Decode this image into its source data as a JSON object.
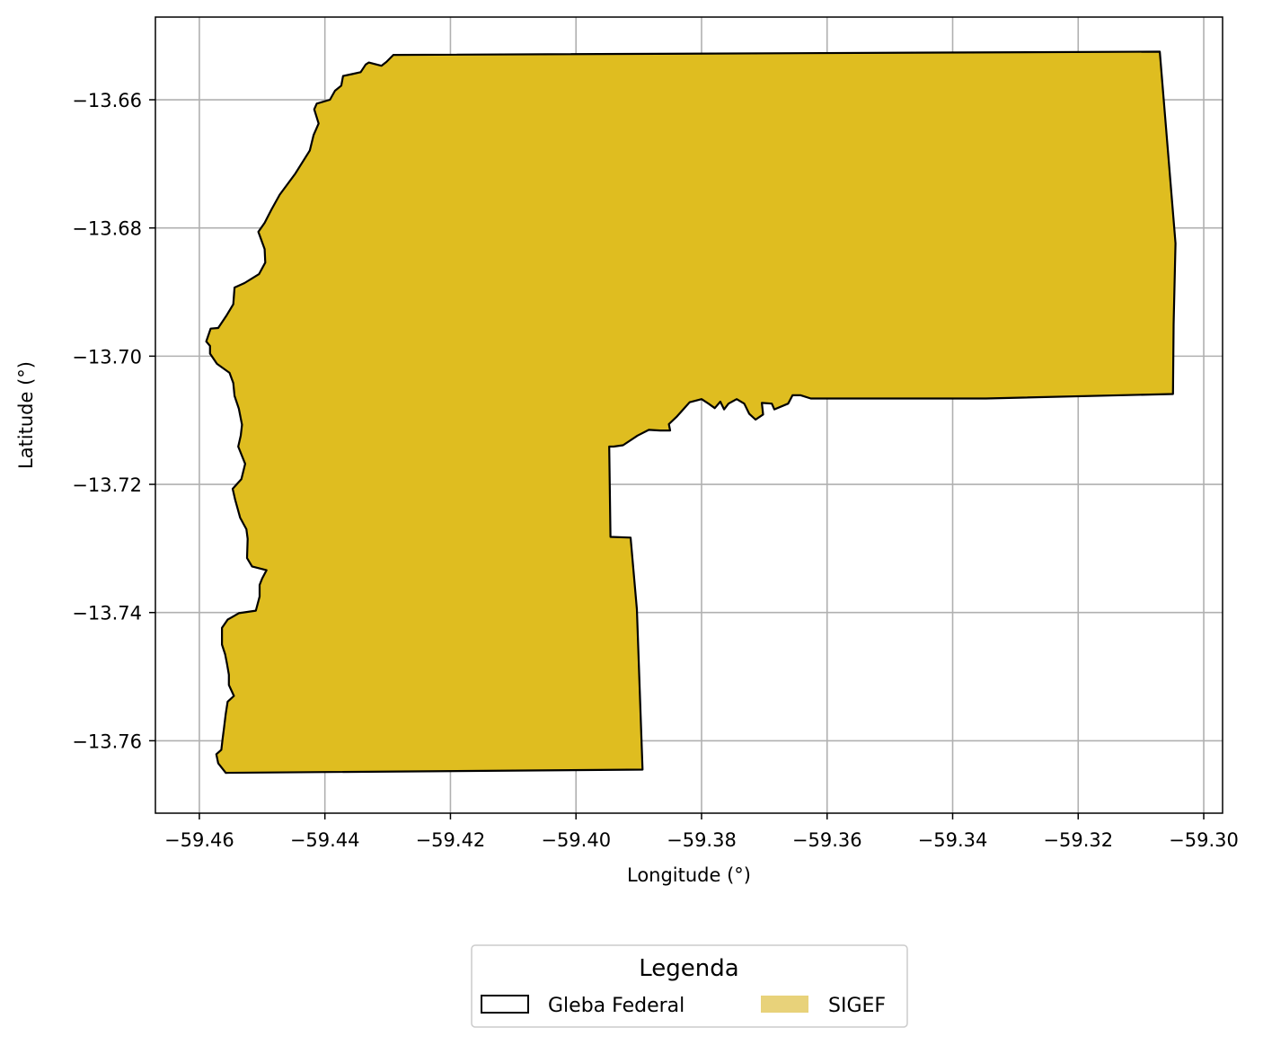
{
  "chart_data": {
    "type": "map",
    "xlabel": "Longitude (°)",
    "ylabel": "Latitude (°)",
    "xlim": [
      -59.467,
      -59.297
    ],
    "ylim": [
      -13.7713,
      -13.6471
    ],
    "x_ticks": [
      -59.46,
      -59.44,
      -59.42,
      -59.4,
      -59.38,
      -59.36,
      -59.34,
      -59.32,
      -59.3
    ],
    "y_ticks": [
      -13.66,
      -13.68,
      -13.7,
      -13.72,
      -13.74,
      -13.76
    ],
    "x_tick_labels": [
      "−59.46",
      "−59.44",
      "−59.42",
      "−59.40",
      "−59.38",
      "−59.36",
      "−59.34",
      "−59.32",
      "−59.30"
    ],
    "y_tick_labels": [
      "−13.66",
      "−13.68",
      "−13.70",
      "−13.72",
      "−13.74",
      "−13.76"
    ],
    "grid": true,
    "legend": {
      "title": "Legenda",
      "placement": "bottom-center",
      "entries": [
        {
          "label": "Gleba Federal",
          "style": "outline",
          "color": "#000000"
        },
        {
          "label": "SIGEF",
          "style": "fill",
          "color": "#e8d27a"
        }
      ]
    },
    "polygon": {
      "name": "Gleba Federal / SIGEF",
      "fill": "#dfbd20",
      "stroke": "#000000",
      "coordinates": [
        [
          -59.4291,
          -13.653
        ],
        [
          -59.307,
          -13.6525
        ],
        [
          -59.3045,
          -13.6824
        ],
        [
          -59.3048,
          -13.695
        ],
        [
          -59.3049,
          -13.7059
        ],
        [
          -59.3347,
          -13.7066
        ],
        [
          -59.3626,
          -13.7066
        ],
        [
          -59.3642,
          -13.7061
        ],
        [
          -59.3655,
          -13.7061
        ],
        [
          -59.3662,
          -13.7074
        ],
        [
          -59.3684,
          -13.7083
        ],
        [
          -59.3688,
          -13.7074
        ],
        [
          -59.3704,
          -13.7073
        ],
        [
          -59.3702,
          -13.7091
        ],
        [
          -59.3714,
          -13.7099
        ],
        [
          -59.3724,
          -13.709
        ],
        [
          -59.3732,
          -13.7074
        ],
        [
          -59.3744,
          -13.7067
        ],
        [
          -59.3757,
          -13.7074
        ],
        [
          -59.3764,
          -13.7083
        ],
        [
          -59.377,
          -13.7071
        ],
        [
          -59.3779,
          -13.7081
        ],
        [
          -59.3789,
          -13.7074
        ],
        [
          -59.38,
          -13.7067
        ],
        [
          -59.3819,
          -13.7072
        ],
        [
          -59.384,
          -13.7095
        ],
        [
          -59.3852,
          -13.7106
        ],
        [
          -59.385,
          -13.7116
        ],
        [
          -59.3866,
          -13.7116
        ],
        [
          -59.3884,
          -13.7115
        ],
        [
          -59.3902,
          -13.7124
        ],
        [
          -59.3925,
          -13.7139
        ],
        [
          -59.394,
          -13.7141
        ],
        [
          -59.3947,
          -13.7141
        ],
        [
          -59.3945,
          -13.7282
        ],
        [
          -59.3913,
          -13.7283
        ],
        [
          -59.3903,
          -13.7395
        ],
        [
          -59.3894,
          -13.7645
        ],
        [
          -59.4558,
          -13.765
        ],
        [
          -59.457,
          -13.7635
        ],
        [
          -59.4573,
          -13.7621
        ],
        [
          -59.4565,
          -13.7614
        ],
        [
          -59.4563,
          -13.7597
        ],
        [
          -59.4561,
          -13.7582
        ],
        [
          -59.4558,
          -13.7558
        ],
        [
          -59.4555,
          -13.7539
        ],
        [
          -59.4545,
          -13.753
        ],
        [
          -59.4553,
          -13.7513
        ],
        [
          -59.4553,
          -13.7497
        ],
        [
          -59.4556,
          -13.748
        ],
        [
          -59.4559,
          -13.7465
        ],
        [
          -59.4564,
          -13.745
        ],
        [
          -59.4564,
          -13.7424
        ],
        [
          -59.4555,
          -13.7411
        ],
        [
          -59.4537,
          -13.7401
        ],
        [
          -59.451,
          -13.7397
        ],
        [
          -59.4504,
          -13.7375
        ],
        [
          -59.4504,
          -13.7357
        ],
        [
          -59.45,
          -13.7347
        ],
        [
          -59.4493,
          -13.7334
        ],
        [
          -59.4516,
          -13.7328
        ],
        [
          -59.4524,
          -13.7315
        ],
        [
          -59.4523,
          -13.7285
        ],
        [
          -59.4525,
          -13.727
        ],
        [
          -59.4535,
          -13.7252
        ],
        [
          -59.4543,
          -13.7224
        ],
        [
          -59.4547,
          -13.7207
        ],
        [
          -59.4533,
          -13.7192
        ],
        [
          -59.4527,
          -13.7168
        ],
        [
          -59.4538,
          -13.7141
        ],
        [
          -59.4534,
          -13.7124
        ],
        [
          -59.4532,
          -13.7107
        ],
        [
          -59.4537,
          -13.7082
        ],
        [
          -59.4544,
          -13.7062
        ],
        [
          -59.4546,
          -13.7042
        ],
        [
          -59.4552,
          -13.7026
        ],
        [
          -59.4572,
          -13.7012
        ],
        [
          -59.4583,
          -13.6996
        ],
        [
          -59.4583,
          -13.6984
        ],
        [
          -59.4589,
          -13.6977
        ],
        [
          -59.4582,
          -13.6957
        ],
        [
          -59.457,
          -13.6956
        ],
        [
          -59.4557,
          -13.6937
        ],
        [
          -59.4546,
          -13.6919
        ],
        [
          -59.4544,
          -13.6893
        ],
        [
          -59.4528,
          -13.6886
        ],
        [
          -59.4505,
          -13.6872
        ],
        [
          -59.4495,
          -13.6854
        ],
        [
          -59.4496,
          -13.6833
        ],
        [
          -59.4506,
          -13.6806
        ],
        [
          -59.4496,
          -13.6792
        ],
        [
          -59.4485,
          -13.6771
        ],
        [
          -59.4472,
          -13.6748
        ],
        [
          -59.4447,
          -13.6715
        ],
        [
          -59.4424,
          -13.6679
        ],
        [
          -59.4418,
          -13.6655
        ],
        [
          -59.441,
          -13.6637
        ],
        [
          -59.4417,
          -13.6615
        ],
        [
          -59.4413,
          -13.6606
        ],
        [
          -59.4392,
          -13.66
        ],
        [
          -59.4384,
          -13.6586
        ],
        [
          -59.4374,
          -13.6578
        ],
        [
          -59.4371,
          -13.6563
        ],
        [
          -59.4357,
          -13.656
        ],
        [
          -59.4343,
          -13.6557
        ],
        [
          -59.4335,
          -13.6545
        ],
        [
          -59.433,
          -13.6542
        ],
        [
          -59.431,
          -13.6547
        ],
        [
          -59.4302,
          -13.6541
        ],
        [
          -59.4291,
          -13.653
        ]
      ]
    }
  }
}
